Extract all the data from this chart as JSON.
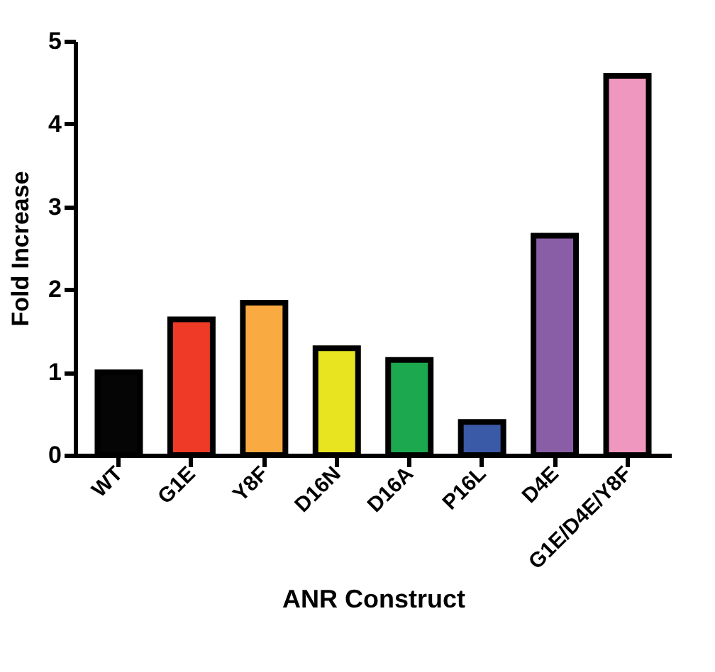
{
  "chart_data": {
    "type": "bar",
    "xlabel": "ANR Construct",
    "ylabel": "Fold Increase",
    "categories": [
      "WT",
      "G1E",
      "Y8F",
      "D16N",
      "D16A",
      "P16L",
      "D4E",
      "G1E/D4E/Y8F"
    ],
    "values": [
      1.0,
      1.64,
      1.84,
      1.29,
      1.15,
      0.4,
      2.65,
      4.58
    ],
    "colors": [
      "#050505",
      "#ee3a26",
      "#f9ab42",
      "#e8e420",
      "#1ba84e",
      "#3a59a6",
      "#8a5ea6",
      "#f097c0"
    ],
    "ylim": [
      0,
      5
    ],
    "yticks": [
      0,
      1,
      2,
      3,
      4,
      5
    ],
    "grid": false
  }
}
